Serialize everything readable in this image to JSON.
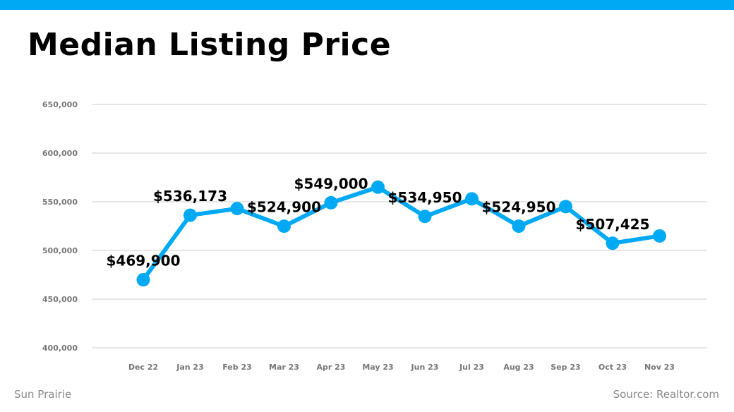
{
  "colors": {
    "accent": "#00a9f4",
    "grid": "#cccccc",
    "tick": "#777777",
    "footer": "#888888",
    "label": "#000000"
  },
  "header": {
    "title": "Median Listing Price"
  },
  "footer": {
    "location": "Sun Prairie",
    "source": "Source: Realtor.com"
  },
  "chart_data": {
    "type": "line",
    "title": "Median Listing Price",
    "xlabel": "",
    "ylabel": "",
    "ylim": [
      400000,
      650000
    ],
    "yticks": [
      "400,000",
      "450,000",
      "500,000",
      "550,000",
      "600,000",
      "650,000"
    ],
    "grid": true,
    "legend": "none",
    "categories": [
      "Dec 22",
      "Jan 23",
      "Feb 23",
      "Mar 23",
      "Apr 23",
      "May 23",
      "Jun 23",
      "Jul 23",
      "Aug 23",
      "Sep 23",
      "Oct 23",
      "Nov 23"
    ],
    "series": [
      {
        "values": [
          469900,
          536173,
          543000,
          524900,
          549000,
          565000,
          534950,
          553000,
          524950,
          545000,
          507425,
          514900
        ],
        "data_labels": [
          "$469,900",
          "$536,173",
          "",
          "$524,900",
          "$549,000",
          "",
          "$534,950",
          "",
          "$524,950",
          "",
          "$507,425",
          ""
        ]
      }
    ]
  }
}
